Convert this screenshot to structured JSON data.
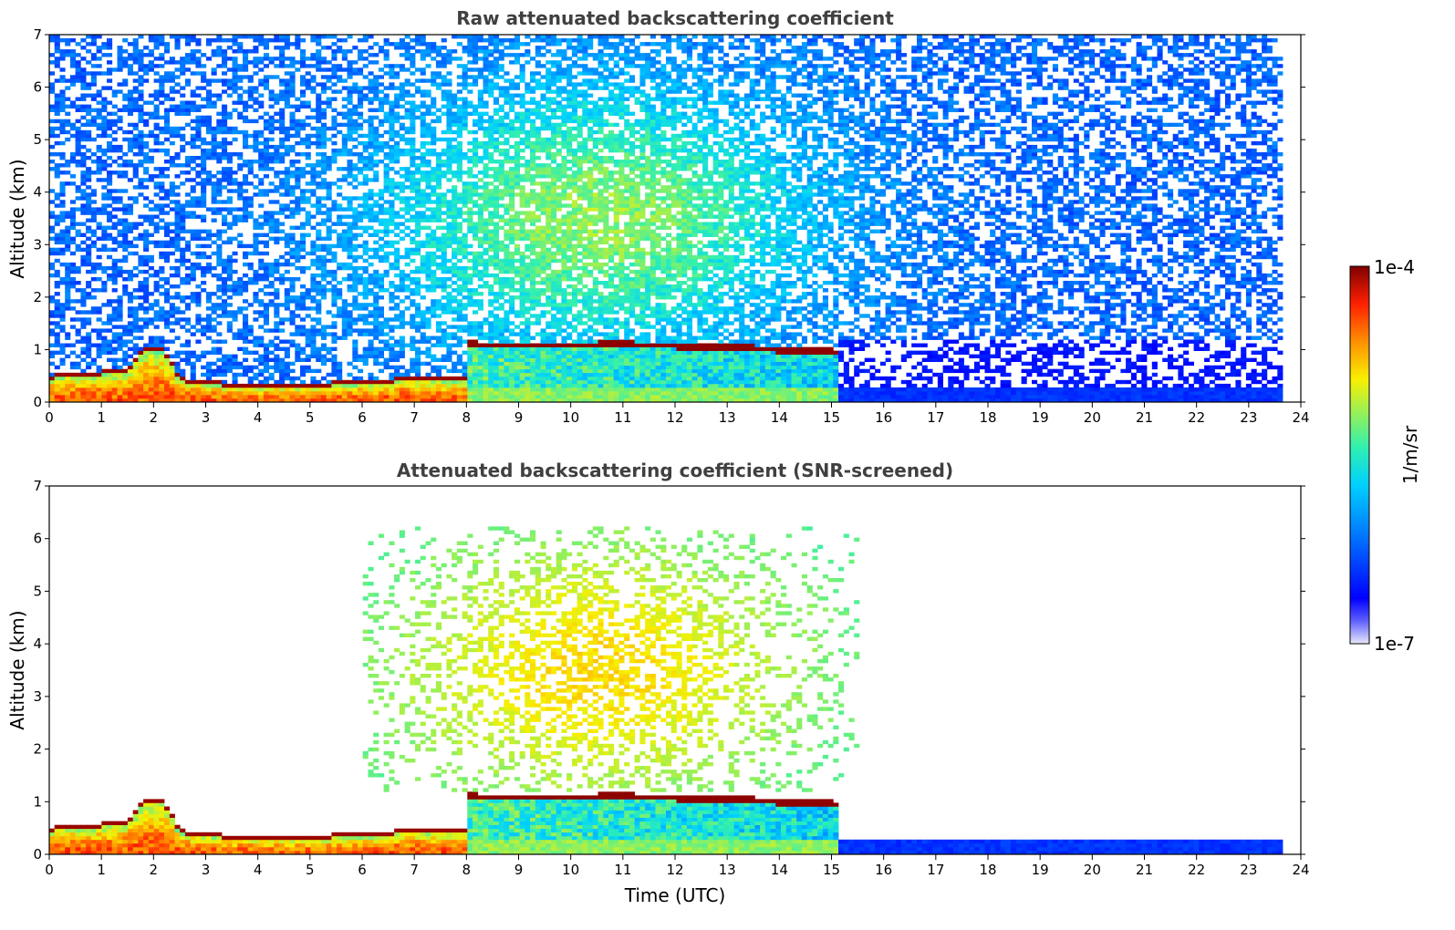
{
  "figure": {
    "colorbar": {
      "max_label": "1e-4",
      "min_label": "1e-7",
      "unit_label": "1/m/sr",
      "colormap": "jet",
      "scale": "log"
    }
  },
  "chart_data": [
    {
      "type": "heatmap",
      "title": "Raw attenuated backscattering coefficient",
      "xlabel": "",
      "ylabel": "Altitude (km)",
      "xlim": [
        0,
        24
      ],
      "ylim": [
        0,
        7
      ],
      "x_ticks": [
        "0",
        "1",
        "2",
        "3",
        "4",
        "5",
        "6",
        "7",
        "8",
        "9",
        "10",
        "11",
        "12",
        "13",
        "14",
        "15",
        "16",
        "17",
        "18",
        "19",
        "20",
        "21",
        "22",
        "23",
        "24"
      ],
      "y_ticks": [
        "0",
        "1",
        "2",
        "3",
        "4",
        "5",
        "6",
        "7"
      ],
      "data_end_time": 23.65,
      "color_range": [
        1e-07,
        0.0001
      ],
      "features": {
        "boundary_layer_top_km": [
          [
            0,
            0.45
          ],
          [
            0.6,
            0.5
          ],
          [
            1.5,
            0.55
          ],
          [
            1.8,
            1.0
          ],
          [
            2.2,
            0.95
          ],
          [
            2.5,
            0.4
          ],
          [
            3.5,
            0.3
          ],
          [
            5,
            0.3
          ],
          [
            6.5,
            0.35
          ],
          [
            6.8,
            0.45
          ],
          [
            7.2,
            0.4
          ],
          [
            8,
            0.4
          ]
        ],
        "cloud_layer_km": [
          [
            8.0,
            1.1
          ],
          [
            9.0,
            1.08
          ],
          [
            11,
            1.1
          ],
          [
            13,
            1.05
          ],
          [
            14,
            1.0
          ],
          [
            15.1,
            0.95
          ]
        ],
        "residual_layer_km": [
          [
            15.5,
            0.3
          ],
          [
            20,
            0.3
          ],
          [
            23.6,
            0.3
          ]
        ],
        "aerosol_plume": {
          "x_range": [
            6.5,
            14.5
          ],
          "y_range": [
            1.5,
            6.5
          ],
          "peak_x": 10.5,
          "peak_y": 3.5
        }
      }
    },
    {
      "type": "heatmap",
      "title": "Attenuated backscattering coefficient (SNR-screened)",
      "xlabel": "Time (UTC)",
      "ylabel": "Altitude (km)",
      "xlim": [
        0,
        24
      ],
      "ylim": [
        0,
        7
      ],
      "x_ticks": [
        "0",
        "1",
        "2",
        "3",
        "4",
        "5",
        "6",
        "7",
        "8",
        "9",
        "10",
        "11",
        "12",
        "13",
        "14",
        "15",
        "16",
        "17",
        "18",
        "19",
        "20",
        "21",
        "22",
        "23",
        "24"
      ],
      "y_ticks": [
        "0",
        "1",
        "2",
        "3",
        "4",
        "5",
        "6",
        "7"
      ],
      "data_end_time": 23.65,
      "color_range": [
        1e-07,
        0.0001
      ],
      "snr_screened": true
    }
  ]
}
